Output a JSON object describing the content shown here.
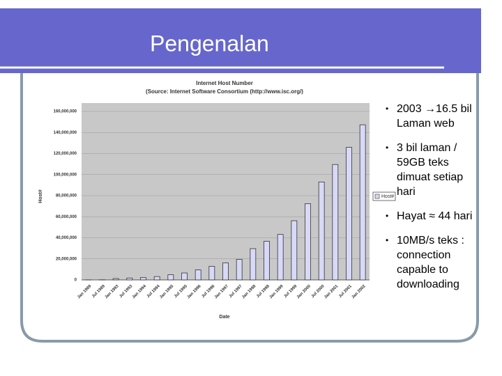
{
  "slide": {
    "title": "Pengenalan",
    "bullets": [
      "2003 →16.5 bil Laman web",
      "3 bil laman / 59GB teks dimuat setiap hari",
      "Hayat ≈ 44 hari",
      "10MB/s teks : connection capable to downloading"
    ]
  },
  "chart_data": {
    "type": "bar",
    "title": "Internet Host Number",
    "subtitle": "(Source: Internet Software Consortium (http://www.isc.org/)",
    "x_label": "Date",
    "y_label": "Host#",
    "categories": [
      "Jan 1989",
      "Jul 1989",
      "Jan 1993",
      "Jul 1993",
      "Jan 1994",
      "Jul 1994",
      "Jan 1995",
      "Jul 1995",
      "Jan 1996",
      "Jul 1996",
      "Jan 1997",
      "Jul 1997",
      "Jan 1998",
      "Jul 1998",
      "Jan 1999",
      "Jul 1999",
      "Jan 2000",
      "Jul 2000",
      "Jan 2001",
      "Jul 2001",
      "Jan 2002"
    ],
    "series": [
      {
        "name": "Host#",
        "color": "#d8d8f8",
        "values": [
          80000,
          130000,
          1300000,
          1800000,
          2200000,
          3200000,
          4900000,
          6600000,
          9500000,
          12900000,
          16100000,
          19500000,
          29700000,
          36700000,
          43200000,
          56200000,
          72400000,
          93000000,
          109600000,
          125900000,
          147300000
        ]
      }
    ],
    "ylim": [
      0,
      160000000
    ],
    "yticks": [
      0,
      {
        "value": 20000000,
        "label": "20,000,000"
      },
      {
        "value": 40000000,
        "label": "40,000,000"
      },
      {
        "value": 60000000,
        "label": "60,000,000"
      },
      {
        "value": 80000000,
        "label": "80,000,000"
      },
      {
        "value": 100000000,
        "label": "100,000,000"
      },
      {
        "value": 120000000,
        "label": "120,000,000"
      },
      {
        "value": 140000000,
        "label": "140,000,000"
      },
      {
        "value": 160000000,
        "label": "160,000,000"
      }
    ],
    "grid": true,
    "legend": "right"
  }
}
